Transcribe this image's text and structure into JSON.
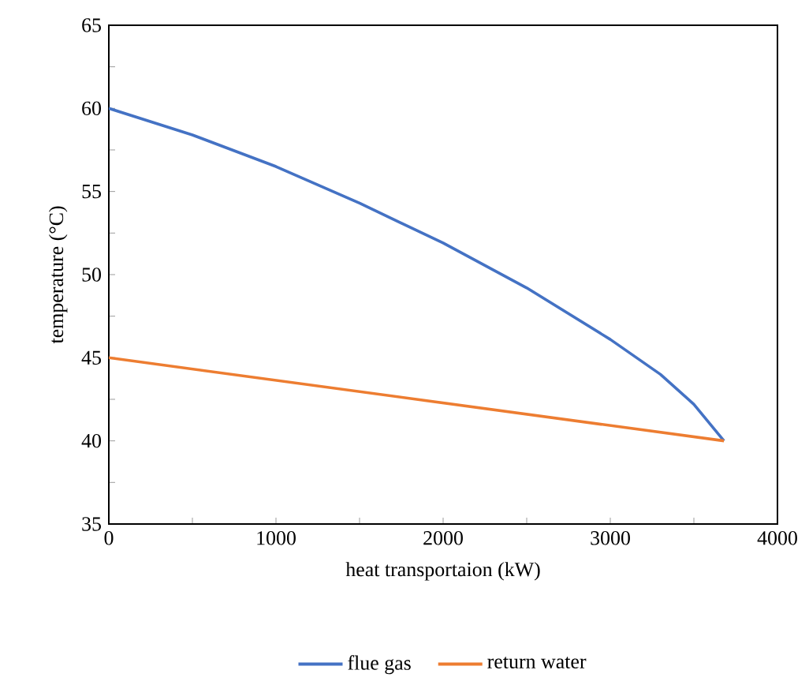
{
  "chart_data": {
    "type": "line",
    "xlabel": "heat transportaion (kW)",
    "ylabel": "temperature (°C)",
    "xlim": [
      0,
      4000
    ],
    "ylim": [
      35,
      65
    ],
    "xticks": [
      0,
      {
        "value": 500,
        "label": null
      },
      1000,
      {
        "value": 1500,
        "label": null
      },
      2000,
      {
        "value": 2500,
        "label": null
      },
      3000,
      {
        "value": 3500,
        "label": null
      },
      4000
    ],
    "yticks": [
      35,
      {
        "value": 37.5,
        "label": null
      },
      40,
      {
        "value": 42.5,
        "label": null
      },
      45,
      {
        "value": 47.5,
        "label": null
      },
      50,
      {
        "value": 52.5,
        "label": null
      },
      55,
      {
        "value": 57.5,
        "label": null
      },
      60,
      {
        "value": 62.5,
        "label": null
      },
      65
    ],
    "grid": false,
    "legend": "bottom",
    "marker": "none",
    "line_style": "solid",
    "series": [
      {
        "name": "flue gas",
        "color": "#4472c4",
        "x": [
          0,
          500,
          1000,
          1500,
          2000,
          2500,
          3000,
          3300,
          3500,
          3680
        ],
        "values": [
          60,
          58.4,
          56.5,
          54.3,
          51.9,
          49.2,
          46.1,
          44.0,
          42.2,
          40
        ]
      },
      {
        "name": "return water",
        "color": "#ed7d31",
        "x": [
          0,
          3680
        ],
        "values": [
          45,
          40
        ]
      }
    ]
  }
}
